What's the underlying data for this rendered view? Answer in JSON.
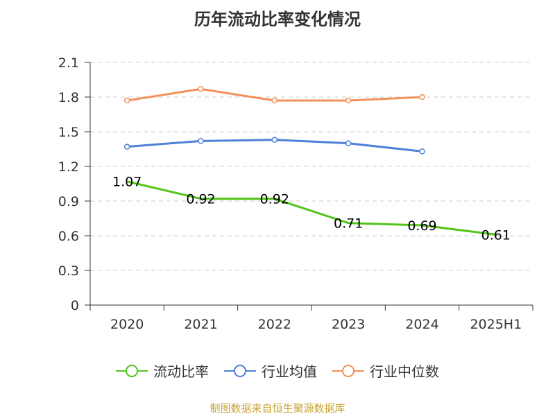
{
  "chart_data": {
    "type": "line",
    "title": "历年流动比率变化情况",
    "categories": [
      "2020",
      "2021",
      "2022",
      "2023",
      "2024",
      "2025H1"
    ],
    "y_ticks": [
      "0",
      "0.3",
      "0.6",
      "0.9",
      "1.2",
      "1.5",
      "1.8",
      "2.1"
    ],
    "ylim": [
      0,
      2.1
    ],
    "grid": true,
    "legend_position": "bottom",
    "series": [
      {
        "name": "流动比率",
        "color": "#52c41a",
        "values": [
          1.07,
          0.92,
          0.92,
          0.71,
          0.69,
          0.61
        ],
        "labels": [
          "1.07",
          "0.92",
          "0.92",
          "0.71",
          "0.69",
          "0.61"
        ]
      },
      {
        "name": "行业均值",
        "color": "#4f7fd9",
        "values": [
          1.37,
          1.42,
          1.43,
          1.4,
          1.33,
          null
        ]
      },
      {
        "name": "行业中位数",
        "color": "#f5905a",
        "values": [
          1.77,
          1.87,
          1.77,
          1.77,
          1.8,
          null
        ]
      }
    ]
  },
  "footer": "制图数据来自恒生聚源数据库"
}
